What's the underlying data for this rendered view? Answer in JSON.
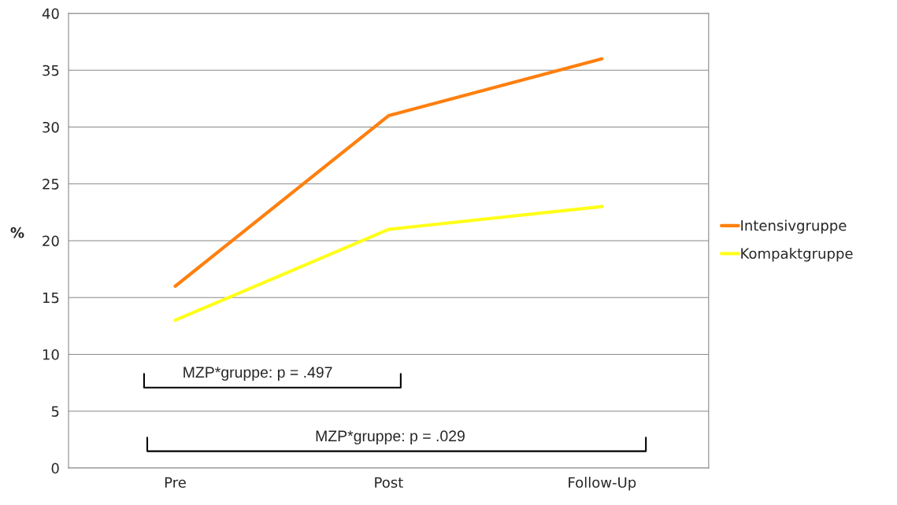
{
  "chart_data": {
    "type": "line",
    "ylabel": "%",
    "categories": [
      "Pre",
      "Post",
      "Follow-Up"
    ],
    "series": [
      {
        "name": "Intensivgruppe",
        "color": "#ff7f0e",
        "values": [
          16,
          31,
          36
        ]
      },
      {
        "name": "Kompaktgruppe",
        "color": "#ffff19",
        "values": [
          13,
          21,
          23
        ]
      }
    ],
    "ylim": [
      0,
      40
    ],
    "yticks": [
      0,
      5,
      10,
      15,
      20,
      25,
      30,
      35,
      40
    ],
    "grid": "y",
    "legend": "right",
    "marker": "none",
    "line_style": "solid",
    "annotations": [
      "MZP*gruppe: p = .497",
      "MZP*gruppe: p = .029"
    ]
  }
}
